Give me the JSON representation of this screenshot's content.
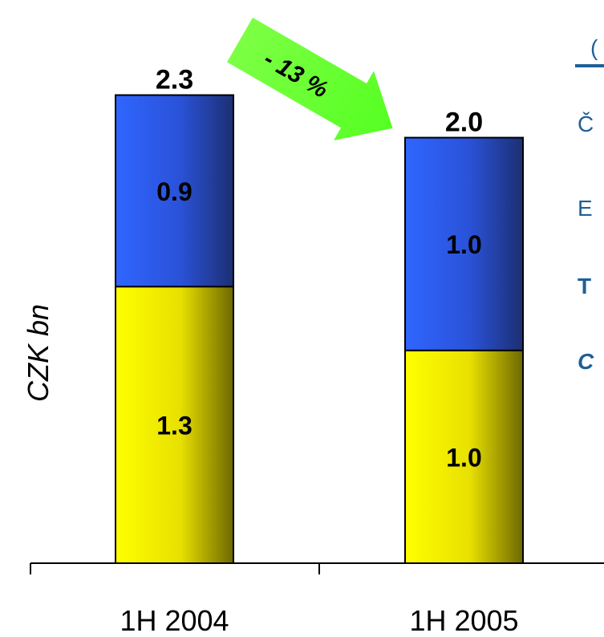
{
  "chart_data": {
    "type": "bar",
    "stacked": true,
    "ylabel": "CZK bn",
    "categories": [
      "1H 2004",
      "1H 2005"
    ],
    "series": [
      {
        "values": [
          1.3,
          1.0
        ],
        "color": "#f2f200"
      },
      {
        "values": [
          0.9,
          1.0
        ],
        "color": "#2f5ff0"
      }
    ],
    "totals": [
      "2.3",
      "2.0"
    ],
    "segment_labels": [
      [
        "1.3",
        "0.9"
      ],
      [
        "1.0",
        "1.0"
      ]
    ],
    "annotation": {
      "text": "- 13 %",
      "color": "#66ff33"
    },
    "ylim": [
      0,
      2.3
    ]
  },
  "legend_fragments": {
    "line1": "(",
    "line2": "Č",
    "line3": "E",
    "line4": "T",
    "line5": "C"
  },
  "colors": {
    "legend_text": "#1f5f97",
    "axis": "#000000"
  }
}
